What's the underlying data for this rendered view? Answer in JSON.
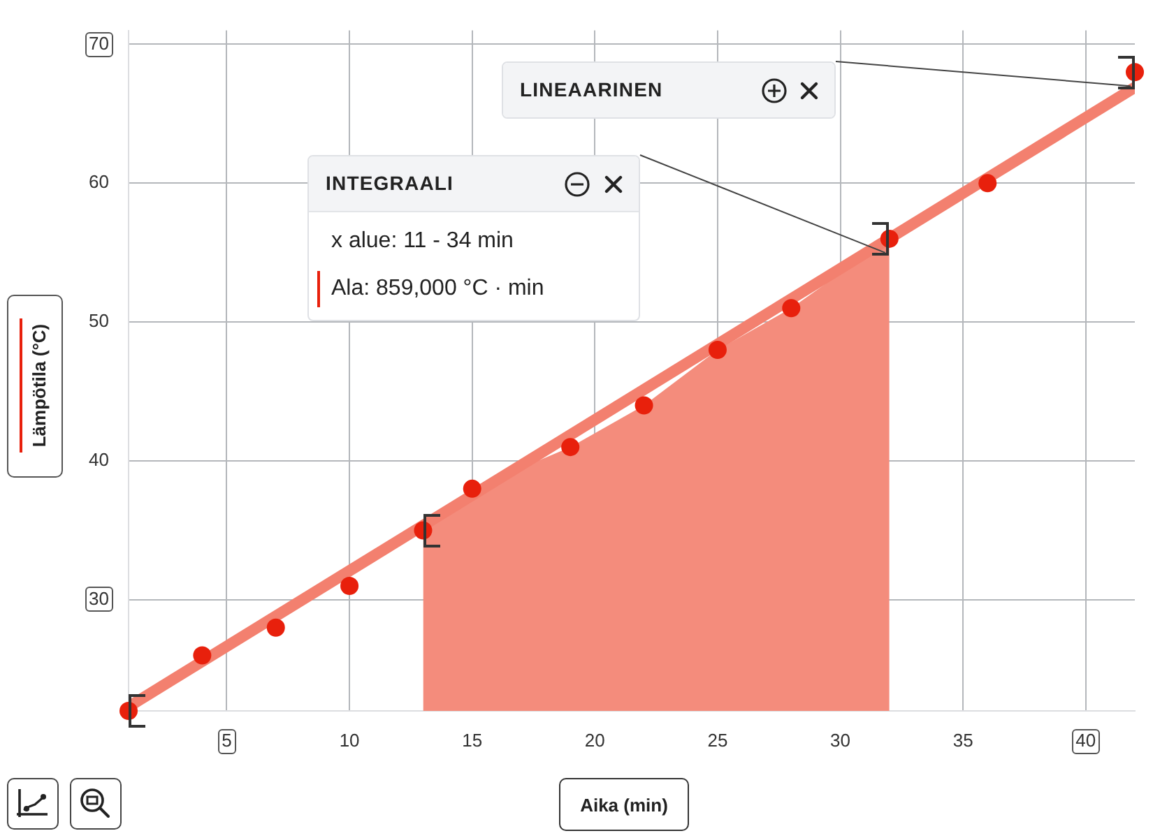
{
  "chart_data": {
    "type": "scatter",
    "xlabel": "Aika (min)",
    "ylabel": "Lämpötila (°C)",
    "xlim": [
      1,
      42
    ],
    "xticks": [
      5,
      10,
      15,
      20,
      25,
      30,
      35,
      40
    ],
    "ylim": [
      22,
      71
    ],
    "yticks": [
      30,
      40,
      50,
      60,
      70
    ],
    "grid": true,
    "marker": "circle",
    "series": [
      {
        "type": "area",
        "marker": "none",
        "color": "#f48c7c",
        "x": [
          13,
          15,
          19,
          22,
          25,
          28,
          32
        ],
        "values": [
          35,
          38,
          41,
          44,
          48,
          51,
          56
        ]
      },
      {
        "type": "line",
        "marker": "none",
        "color": "#f3806f",
        "x": [
          1,
          42
        ],
        "values": [
          22.3,
          66.9
        ]
      },
      {
        "color": "#e8200c",
        "x": [
          1,
          4,
          7,
          10,
          13,
          15,
          19,
          22,
          25,
          28,
          32,
          36,
          42
        ],
        "values": [
          22,
          26,
          28,
          31,
          35,
          38,
          41,
          44,
          48,
          51,
          56,
          60,
          68
        ]
      }
    ],
    "annotations": [
      "LINEAARINEN",
      "INTEGRAALI",
      "x alue: 11 - 34 min",
      "Ala: 859,000 °C · min"
    ]
  }
}
